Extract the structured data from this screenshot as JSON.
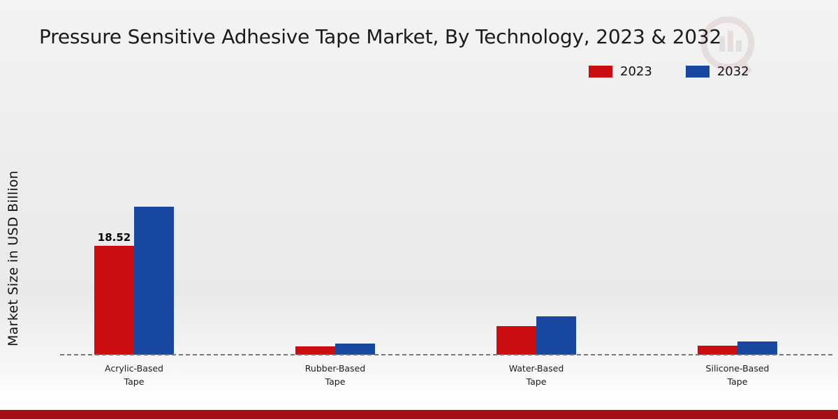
{
  "title": "Pressure Sensitive Adhesive Tape Market, By Technology, 2023 & 2032",
  "ylabel": "Market Size in USD Billion",
  "footer_color": "#a31013",
  "chart_data": {
    "type": "bar",
    "categories": [
      "Acrylic-Based Tape",
      "Rubber-Based Tape",
      "Water-Based Tape",
      "Silicone-Based Tape"
    ],
    "series": [
      {
        "name": "2023",
        "color": "#c90d10",
        "values": [
          18.52,
          1.4,
          4.9,
          1.5
        ]
      },
      {
        "name": "2032",
        "color": "#17479e",
        "values": [
          25.1,
          1.9,
          6.5,
          2.2
        ]
      }
    ],
    "ylim": [
      0,
      30
    ],
    "value_labels": [
      {
        "category": 0,
        "series": 0,
        "text": "18.52"
      }
    ],
    "legend_position": "top-right",
    "grid": false,
    "baseline_style": "dashed"
  }
}
